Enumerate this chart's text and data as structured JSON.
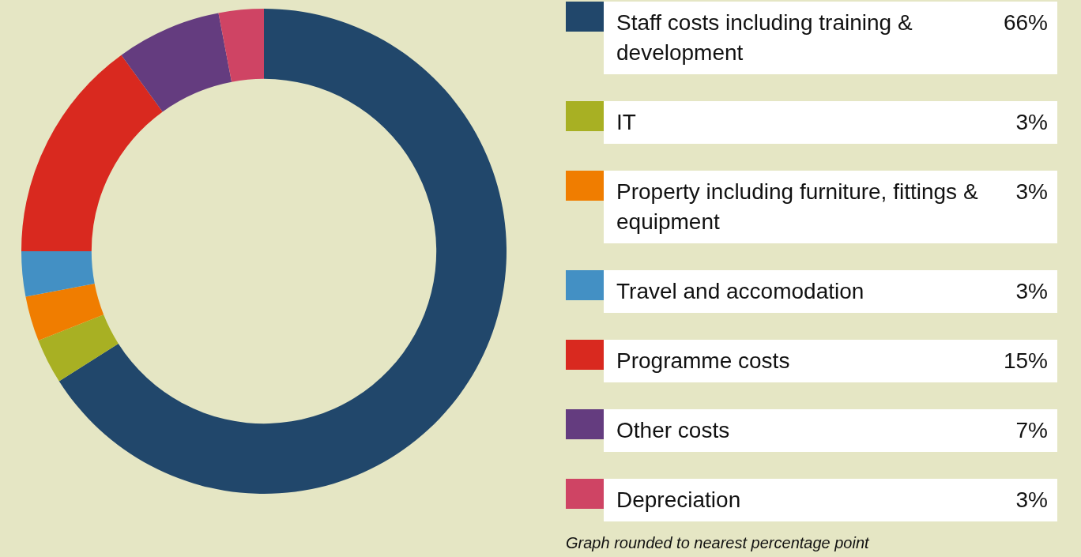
{
  "chart_data": {
    "type": "donut",
    "categories": [
      "Staff costs including training & development",
      "IT",
      "Property including furniture, fittings & equipment",
      "Travel and accomodation",
      "Programme costs",
      "Other costs",
      "Depreciation"
    ],
    "values": [
      66,
      3,
      3,
      3,
      15,
      7,
      3
    ],
    "colors": [
      "#21476b",
      "#a8b023",
      "#f07d00",
      "#4390c4",
      "#d9291f",
      "#643c7f",
      "#cf4464"
    ],
    "value_labels": [
      "66%",
      "3%",
      "3%",
      "3%",
      "15%",
      "7%",
      "3%"
    ],
    "legend": "right",
    "annotations": [
      "Graph rounded to nearest percentage point"
    ]
  }
}
